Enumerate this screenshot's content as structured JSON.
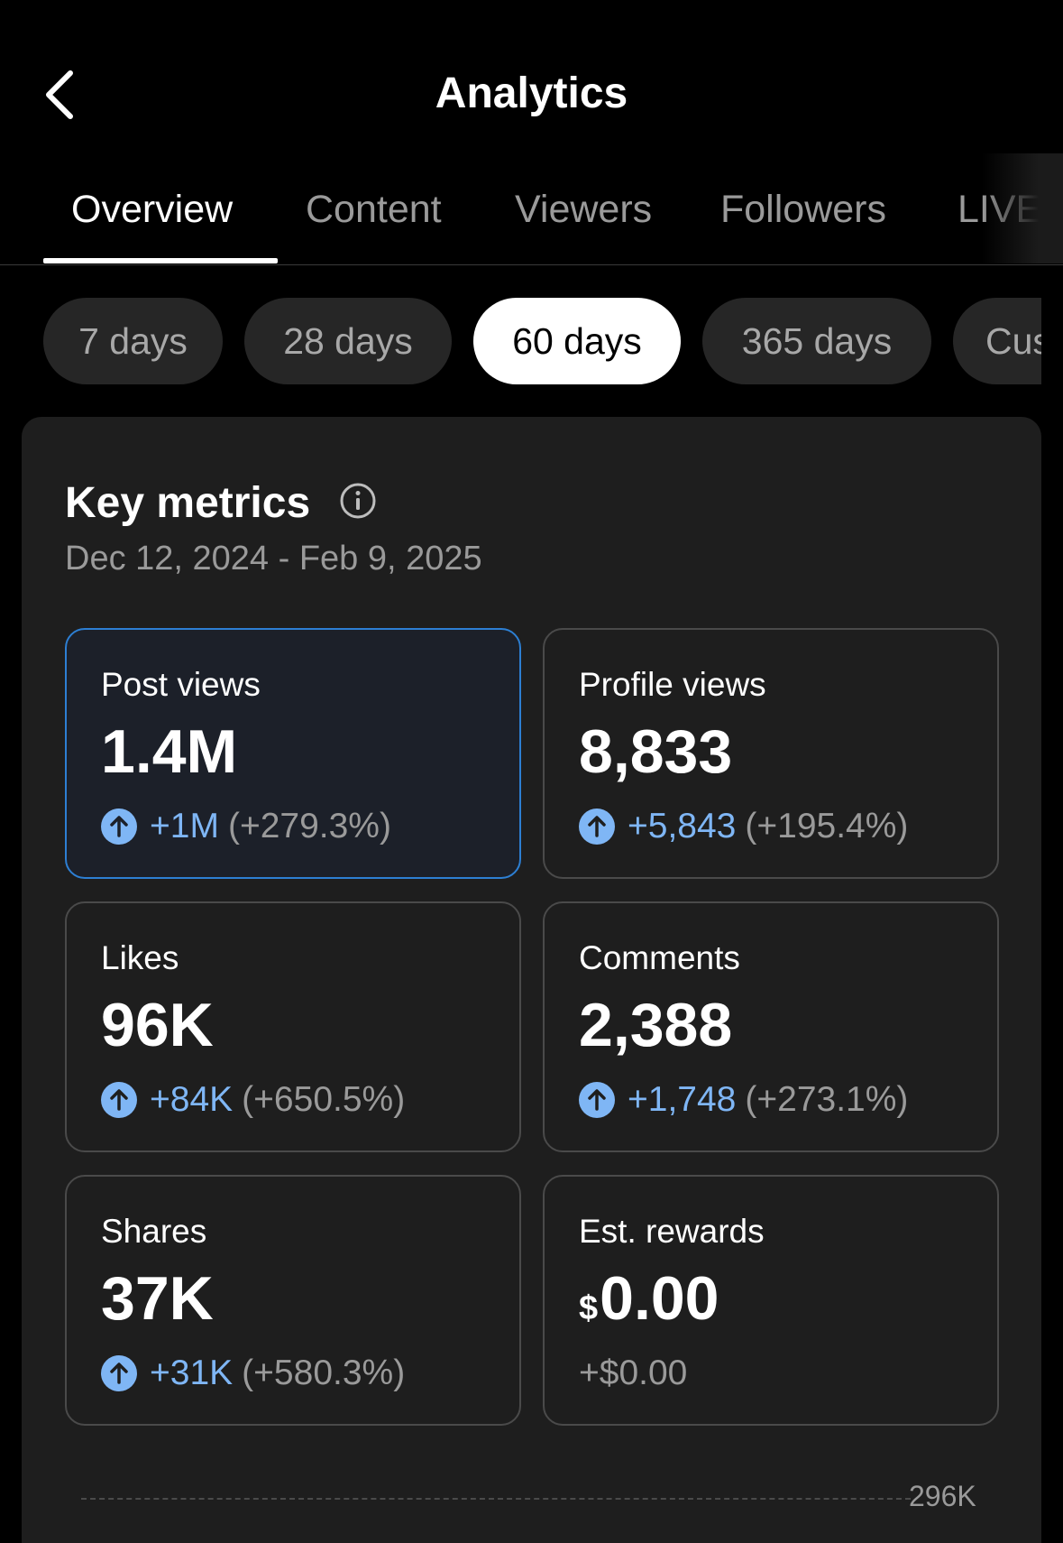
{
  "header": {
    "title": "Analytics"
  },
  "tabs": [
    {
      "label": "Overview",
      "active": true
    },
    {
      "label": "Content"
    },
    {
      "label": "Viewers"
    },
    {
      "label": "Followers"
    },
    {
      "label": "LIVE"
    }
  ],
  "ranges": [
    {
      "label": "7 days"
    },
    {
      "label": "28 days"
    },
    {
      "label": "60 days",
      "active": true
    },
    {
      "label": "365 days"
    },
    {
      "label": "Cus"
    }
  ],
  "key_metrics": {
    "title": "Key metrics",
    "date_range": "Dec 12, 2024 - Feb 9, 2025",
    "items": [
      {
        "label": "Post views",
        "value": "1.4M",
        "delta": "+1M",
        "pct": "(+279.3%)"
      },
      {
        "label": "Profile views",
        "value": "8,833",
        "delta": "+5,843",
        "pct": "(+195.4%)"
      },
      {
        "label": "Likes",
        "value": "96K",
        "delta": "+84K",
        "pct": "(+650.5%)"
      },
      {
        "label": "Comments",
        "value": "2,388",
        "delta": "+1,748",
        "pct": "(+273.1%)"
      },
      {
        "label": "Shares",
        "value": "37K",
        "delta": "+31K",
        "pct": "(+580.3%)"
      },
      {
        "label": "Est. rewards",
        "currency": "$",
        "value": "0.00",
        "delta": "+$0.00"
      }
    ]
  },
  "chart": {
    "y_tick": "296K"
  },
  "colors": {
    "accent": "#7fb6f5",
    "selected_border": "#2d7fd3",
    "background": "#000000",
    "card": "#1e1e1e"
  },
  "icons": {
    "back": "chevron-left-icon",
    "info": "info-icon",
    "up": "arrow-up-circle-icon"
  }
}
